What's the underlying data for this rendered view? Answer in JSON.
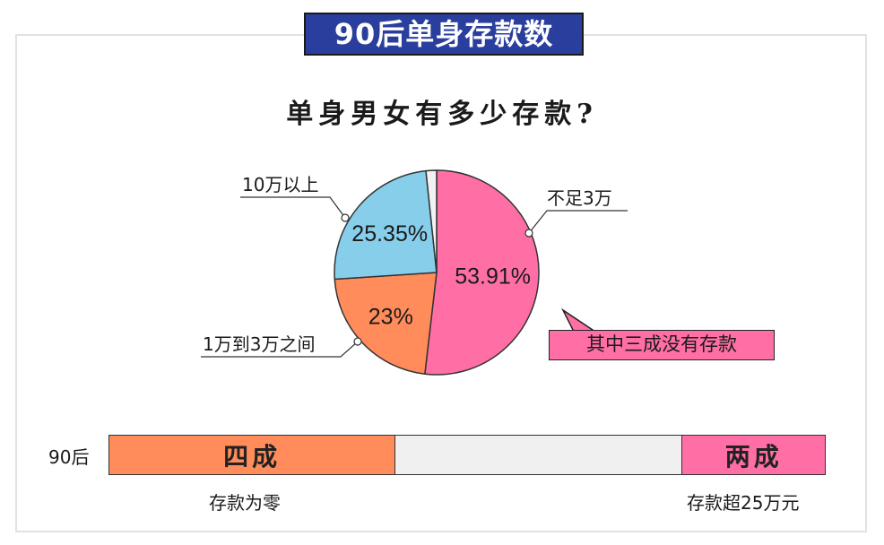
{
  "banner": {
    "title": "90后单身存款数"
  },
  "subtitle": "单身男女有多少存款?",
  "chart_data": [
    {
      "type": "pie",
      "title": "单身男女有多少存款?",
      "slices": [
        {
          "label": "不足3万",
          "value": 53.91,
          "display": "53.91%",
          "color": "#ff6fa5"
        },
        {
          "label": "1万到3万之间",
          "value": 23,
          "display": "23%",
          "color": "#ff8c5a"
        },
        {
          "label": "10万以上",
          "value": 25.35,
          "display": "25.35%",
          "color": "#87ceeb"
        },
        {
          "label": "",
          "value": 1.74,
          "display": "",
          "color": "#f2f2f2"
        }
      ]
    },
    {
      "type": "bar",
      "categories": [
        "90后"
      ],
      "segments": [
        {
          "label": "四成",
          "fraction": 0.4,
          "note": "存款为零",
          "color": "#ff8c5a"
        },
        {
          "label": "",
          "fraction": 0.4,
          "note": "",
          "color": "#f0f0f0"
        },
        {
          "label": "两成",
          "fraction": 0.2,
          "note": "存款超25万元",
          "color": "#ff6fa5"
        }
      ]
    }
  ],
  "callout": "其中三成没有存款"
}
